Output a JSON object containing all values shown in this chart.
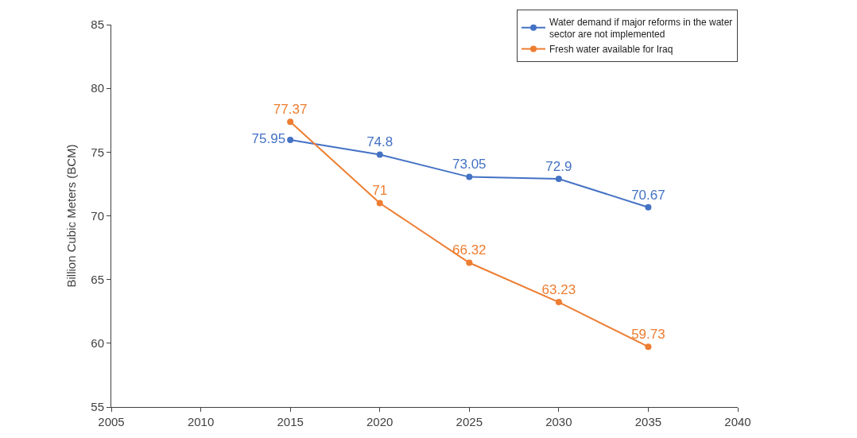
{
  "chart_data": {
    "type": "line",
    "ylabel": "Billion Cubic Meters (BCM)",
    "x": [
      2015,
      2020,
      2025,
      2030,
      2035
    ],
    "series": [
      {
        "name": "Water demand if major reforms in the water sector are not implemented",
        "color": "#4472c4",
        "values": [
          75.95,
          74.8,
          73.05,
          72.9,
          70.67
        ]
      },
      {
        "name": "Fresh water available for Iraq",
        "color": "#ed7d31",
        "values": [
          77.37,
          71,
          66.32,
          63.23,
          59.73
        ]
      }
    ],
    "xlim": [
      2005,
      2040
    ],
    "xticks": [
      2005,
      2010,
      2015,
      2020,
      2025,
      2030,
      2035,
      2040
    ],
    "ylim": [
      55,
      85
    ],
    "yticks": [
      55,
      60,
      65,
      70,
      75,
      80,
      85
    ],
    "data_labels": true,
    "legend": "top right",
    "marker": "circle",
    "line_style": "solid"
  }
}
